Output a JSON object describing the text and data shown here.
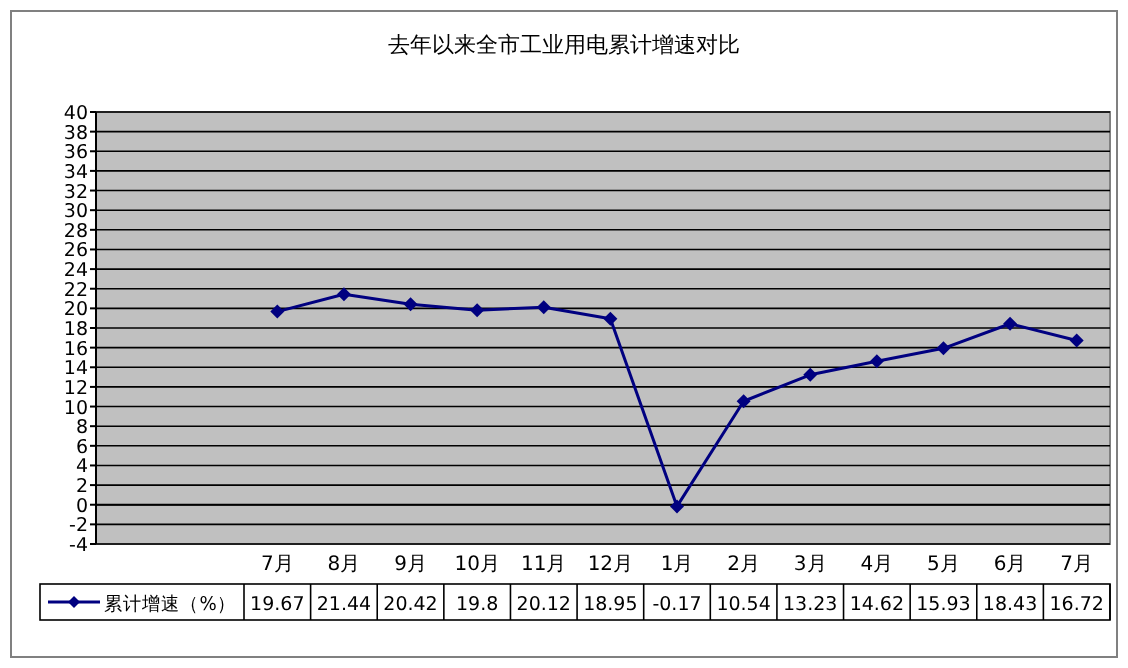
{
  "chart_data": {
    "type": "line",
    "title": "去年以来全市工业用电累计增速对比",
    "categories": [
      "7月",
      "8月",
      "9月",
      "10月",
      "11月",
      "12月",
      "1月",
      "2月",
      "3月",
      "4月",
      "5月",
      "6月",
      "7月"
    ],
    "series": [
      {
        "name": "累计增速（%）",
        "color": "#000080",
        "values": [
          19.67,
          21.44,
          20.42,
          19.8,
          20.12,
          18.95,
          -0.17,
          10.54,
          13.23,
          14.62,
          15.93,
          18.43,
          16.72
        ]
      }
    ],
    "ylim": [
      -4,
      40
    ],
    "yticks": [
      -4,
      -2,
      0,
      2,
      4,
      6,
      8,
      10,
      12,
      14,
      16,
      18,
      20,
      22,
      24,
      26,
      28,
      30,
      32,
      34,
      36,
      38,
      40
    ],
    "grid": "y",
    "marker": "diamond",
    "line_style": "solid",
    "legend": "bottom left",
    "data_labels": true
  }
}
